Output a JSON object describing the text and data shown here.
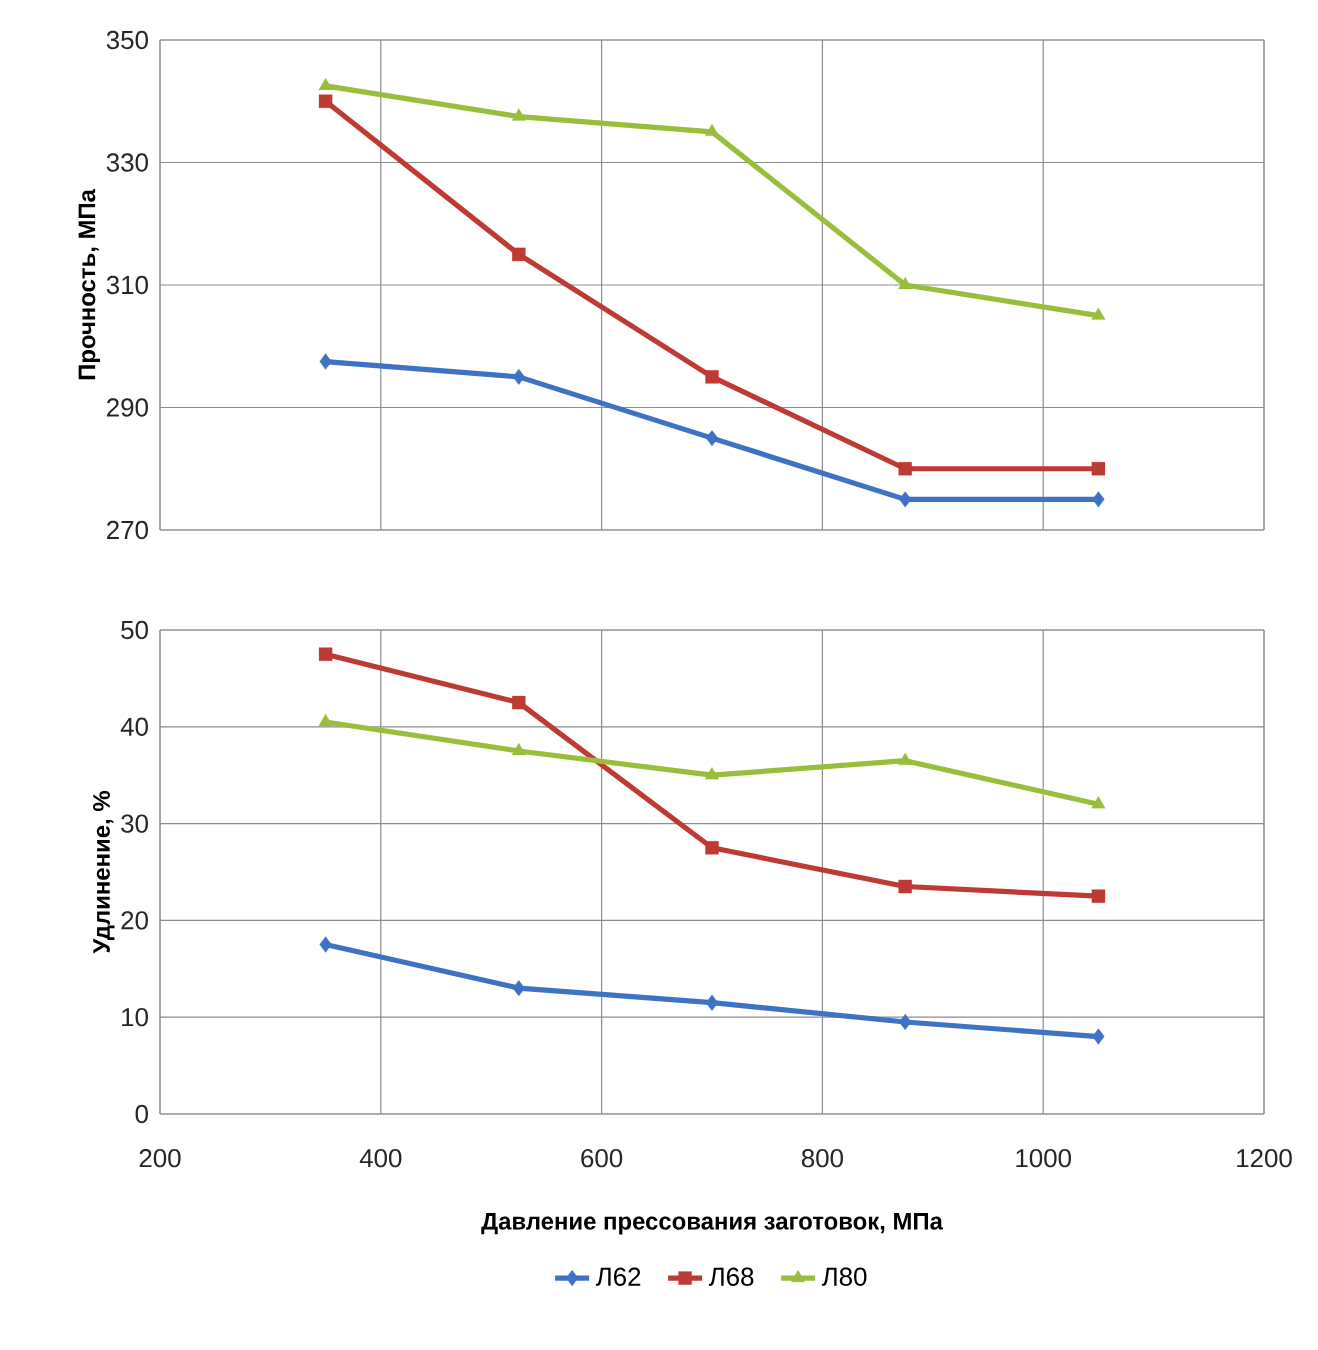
{
  "chart_data": [
    {
      "type": "line",
      "ylabel": "Прочность, МПа",
      "xlim": [
        200,
        1200
      ],
      "xticks": [
        200,
        400,
        600,
        800,
        1000,
        1200
      ],
      "ylim": [
        270,
        350
      ],
      "yticks": [
        270,
        290,
        310,
        330,
        350
      ],
      "grid": true,
      "tick_labels": "y",
      "x": [
        350,
        525,
        700,
        875,
        1050
      ],
      "series": [
        {
          "color": "#3e72c4",
          "marker": "diamond",
          "values": [
            297.5,
            295,
            285,
            275,
            275
          ]
        },
        {
          "color": "#be3a34",
          "marker": "square",
          "values": [
            340,
            315,
            295,
            280,
            280
          ]
        },
        {
          "color": "#98be3b",
          "marker": "triangle",
          "values": [
            342.5,
            337.5,
            335,
            310,
            305
          ]
        }
      ]
    },
    {
      "type": "line",
      "xlabel": "Давление прессования заготовок,  МПа",
      "ylabel": "Удлинение, %",
      "xlim": [
        200,
        1200
      ],
      "xticks": [
        200,
        400,
        600,
        800,
        1000,
        1200
      ],
      "ylim": [
        0,
        50
      ],
      "yticks": [
        0,
        10,
        20,
        30,
        40,
        50
      ],
      "grid": true,
      "legend": "bottom",
      "x": [
        350,
        525,
        700,
        875,
        1050
      ],
      "series": [
        {
          "name": "Л62",
          "color": "#3e72c4",
          "marker": "diamond",
          "values": [
            17.5,
            13,
            11.5,
            9.5,
            8
          ]
        },
        {
          "name": "Л68",
          "color": "#be3a34",
          "marker": "square",
          "values": [
            47.5,
            42.5,
            27.5,
            23.5,
            22.5
          ]
        },
        {
          "name": "Л80",
          "color": "#98be3b",
          "marker": "triangle",
          "values": [
            40.5,
            37.5,
            35,
            36.5,
            32
          ]
        }
      ]
    }
  ]
}
